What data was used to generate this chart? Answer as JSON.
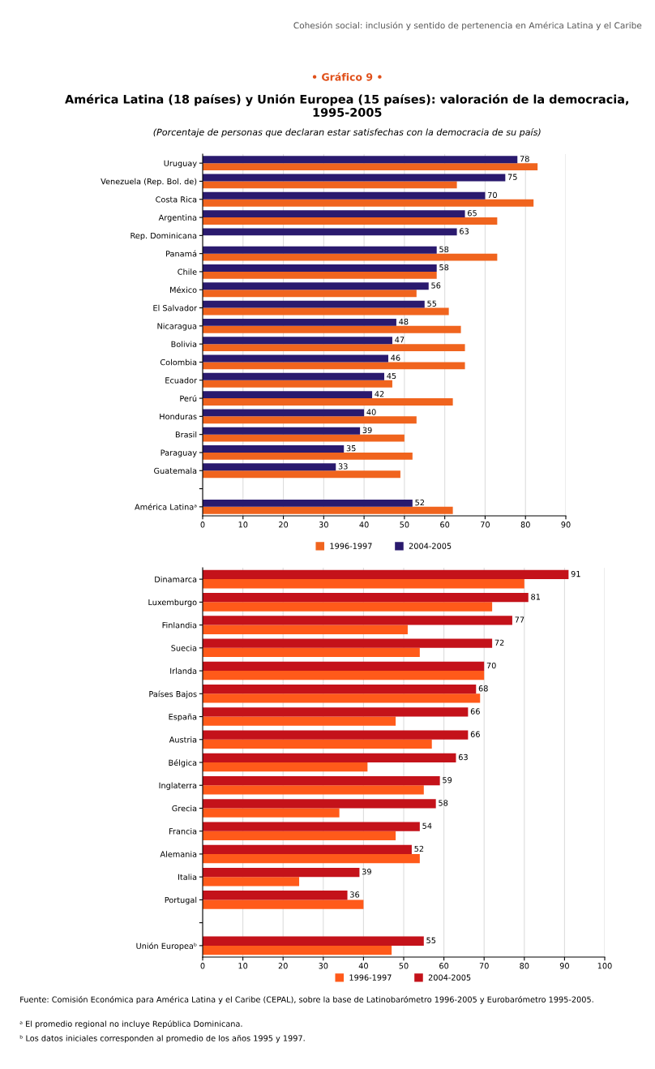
{
  "chart_data": [
    {
      "type": "bar",
      "orientation": "horizontal",
      "title": "América Latina (18 países) y Unión Europea (15 países): valoración de la democracia, 1995-2005",
      "subtitle": "(Porcentaje de personas que declaran estar satisfechas con la democracia de su país)",
      "annotations": [
        "Cohesión social: inclusión y sentido de pertenencia en América Latina y el Caribe",
        "• Gráfico 9 •"
      ],
      "categories": [
        "Uruguay",
        "Venezuela (Rep. Bol. de)",
        "Costa Rica",
        "Argentina",
        "Rep. Dominicana",
        "Panamá",
        "Chile",
        "México",
        "El Salvador",
        "Nicaragua",
        "Bolivia",
        "Colombia",
        "Ecuador",
        "Perú",
        "Honduras",
        "Brasil",
        "Paraguay",
        "Guatemala",
        null,
        "América Latinaᵃ"
      ],
      "series": [
        {
          "name": "1996-1997",
          "color": "#f0641e",
          "values": [
            83,
            63,
            82,
            73,
            null,
            73,
            58,
            53,
            61,
            64,
            65,
            65,
            47,
            62,
            53,
            50,
            52,
            49,
            null,
            62
          ]
        },
        {
          "name": "2004-2005",
          "color": "#2a1a6e",
          "values": [
            78,
            75,
            70,
            65,
            63,
            58,
            58,
            56,
            55,
            48,
            47,
            46,
            45,
            42,
            40,
            39,
            35,
            33,
            null,
            52
          ],
          "value_labels": [
            "78",
            "75",
            "70",
            "65",
            "63",
            "58",
            "58",
            "56",
            "55",
            "48",
            "47",
            "46",
            "45",
            "42",
            "40",
            "39",
            "35",
            "33",
            null,
            "52"
          ]
        }
      ],
      "xlim": [
        0,
        90
      ],
      "xticks": [
        0,
        10,
        20,
        30,
        40,
        50,
        60,
        70,
        80,
        90
      ],
      "grid": "x",
      "legend": "bottom"
    },
    {
      "type": "bar",
      "orientation": "horizontal",
      "annotations": [
        "Fuente: Comisión Económica para América Latina y el Caribe (CEPAL), sobre la base de Latinobarómetro 1996-2005 y Eurobarómetro 1995-2005.",
        "ᵃ El promedio regional no incluye República Dominicana.",
        "ᵇ Los datos iniciales corresponden al promedio de los años 1995 y 1997."
      ],
      "categories": [
        "Dinamarca",
        "Luxemburgo",
        "Finlandia",
        "Suecia",
        "Irlanda",
        "Países Bajos",
        "España",
        "Austria",
        "Bélgica",
        "Inglaterra",
        "Grecia",
        "Francia",
        "Alemania",
        "Italia",
        "Portugal",
        null,
        "Unión Europeaᵇ"
      ],
      "series": [
        {
          "name": "1996-1997",
          "color": "#ff5a1a",
          "values": [
            80,
            72,
            51,
            54,
            70,
            69,
            48,
            57,
            41,
            55,
            34,
            48,
            54,
            24,
            40,
            null,
            47
          ]
        },
        {
          "name": "2004-2005",
          "color": "#c4121a",
          "values": [
            91,
            81,
            77,
            72,
            70,
            68,
            66,
            66,
            63,
            59,
            58,
            54,
            52,
            39,
            36,
            null,
            55
          ],
          "value_labels": [
            "91",
            "81",
            "77",
            "72",
            "70",
            "68",
            "66",
            "66",
            "63",
            "59",
            "58",
            "54",
            "52",
            "39",
            "36",
            null,
            "55"
          ]
        }
      ],
      "xlim": [
        0,
        100
      ],
      "xticks": [
        0,
        10,
        20,
        30,
        40,
        50,
        60,
        70,
        80,
        90,
        100
      ],
      "grid": "x",
      "legend": "bottom"
    }
  ]
}
